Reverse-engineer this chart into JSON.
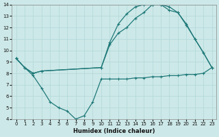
{
  "xlabel": "Humidex (Indice chaleur)",
  "xlim": [
    -0.5,
    23.5
  ],
  "ylim": [
    4,
    14
  ],
  "xticks": [
    0,
    1,
    2,
    3,
    4,
    5,
    6,
    7,
    8,
    9,
    10,
    11,
    12,
    13,
    14,
    15,
    16,
    17,
    18,
    19,
    20,
    21,
    22,
    23
  ],
  "yticks": [
    4,
    5,
    6,
    7,
    8,
    9,
    10,
    11,
    12,
    13,
    14
  ],
  "bg_color": "#cde8e8",
  "grid_color": "#b0d8d8",
  "line_color": "#1e7878",
  "curve1_x": [
    0,
    1,
    2,
    3,
    4,
    5,
    6,
    7,
    8,
    9,
    10,
    11,
    12,
    13,
    14,
    15,
    16,
    17,
    18,
    19,
    20,
    21,
    22,
    23
  ],
  "curve1_y": [
    9.3,
    8.5,
    7.8,
    6.7,
    5.5,
    5.0,
    4.7,
    4.0,
    4.3,
    5.5,
    7.5,
    7.5,
    7.5,
    7.5,
    7.6,
    7.6,
    7.7,
    7.7,
    7.8,
    7.8,
    7.9,
    7.9,
    8.0,
    8.5
  ],
  "curve2_x": [
    0,
    1,
    2,
    3,
    10,
    11,
    12,
    13,
    14,
    15,
    16,
    17,
    18,
    19,
    20,
    21,
    22,
    23
  ],
  "curve2_y": [
    9.3,
    8.5,
    8.0,
    8.2,
    8.5,
    10.7,
    12.3,
    13.2,
    13.8,
    14.0,
    14.0,
    14.0,
    13.8,
    13.3,
    12.3,
    11.0,
    9.8,
    8.5
  ],
  "curve3_x": [
    0,
    1,
    2,
    3,
    10,
    11,
    12,
    13,
    14,
    15,
    16,
    17,
    18,
    19,
    20,
    21,
    22,
    23
  ],
  "curve3_y": [
    9.3,
    8.5,
    8.0,
    8.2,
    8.5,
    10.5,
    11.5,
    12.0,
    12.8,
    13.3,
    14.0,
    14.0,
    13.5,
    13.3,
    12.2,
    11.0,
    9.8,
    8.5
  ]
}
